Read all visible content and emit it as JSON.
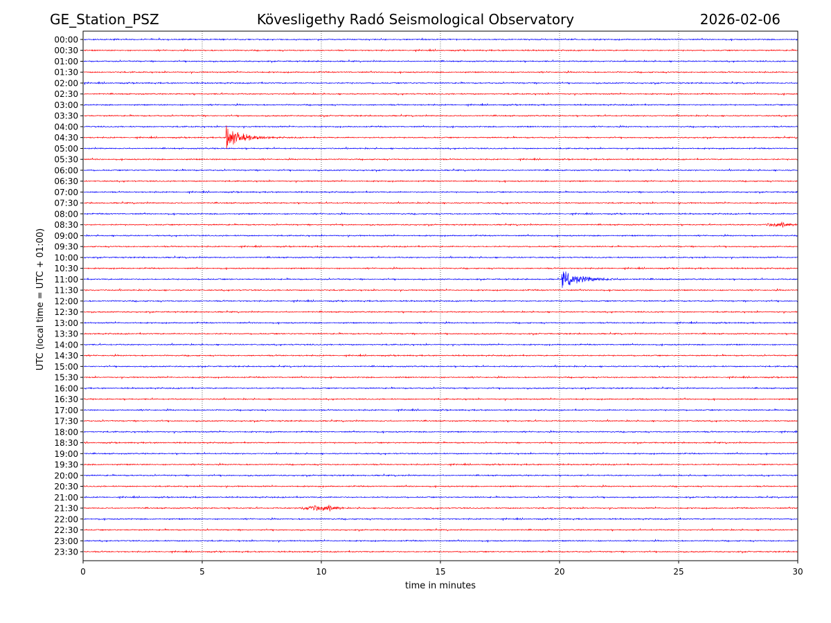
{
  "header": {
    "station": "GE_Station_PSZ",
    "observatory": "Kövesligethy Radó Seismological Observatory",
    "date": "2026-02-06"
  },
  "chart_data": {
    "type": "line",
    "title": "Kövesligethy Radó Seismological Observatory",
    "xlabel": "time in minutes",
    "ylabel": "UTC (local time = UTC + 01:00)",
    "xlim": [
      0,
      30
    ],
    "xticks": [
      "0",
      "5",
      "10",
      "15",
      "20",
      "25",
      "30"
    ],
    "xtick_values": [
      0,
      5,
      10,
      15,
      20,
      25,
      30
    ],
    "grid": "vertical dotted at x ticks",
    "colors": [
      "#0000ff",
      "#ff0000"
    ],
    "rows": [
      "00:00",
      "00:30",
      "01:00",
      "01:30",
      "02:00",
      "02:30",
      "03:00",
      "03:30",
      "04:00",
      "04:30",
      "05:00",
      "05:30",
      "06:00",
      "06:30",
      "07:00",
      "07:30",
      "08:00",
      "08:30",
      "09:00",
      "09:30",
      "10:00",
      "10:30",
      "11:00",
      "11:30",
      "12:00",
      "12:30",
      "13:00",
      "13:30",
      "14:00",
      "14:30",
      "15:00",
      "15:30",
      "16:00",
      "16:30",
      "17:00",
      "17:30",
      "18:00",
      "18:30",
      "19:00",
      "19:30",
      "20:00",
      "20:30",
      "21:00",
      "21:30",
      "22:00",
      "22:30",
      "23:00",
      "23:30"
    ],
    "events": [
      {
        "row": "04:30",
        "start_min": 6.0,
        "duration_min": 3.0,
        "amplitude": 1.9,
        "type": "impulsive"
      },
      {
        "row": "11:00",
        "start_min": 20.1,
        "duration_min": 4.5,
        "amplitude": 1.0,
        "type": "impulsive"
      },
      {
        "row": "21:30",
        "start_min": 9.0,
        "duration_min": 2.0,
        "amplitude": 0.35,
        "type": "emergent"
      },
      {
        "row": "08:30",
        "start_min": 28.5,
        "duration_min": 1.5,
        "amplitude": 0.25,
        "type": "emergent"
      }
    ]
  }
}
